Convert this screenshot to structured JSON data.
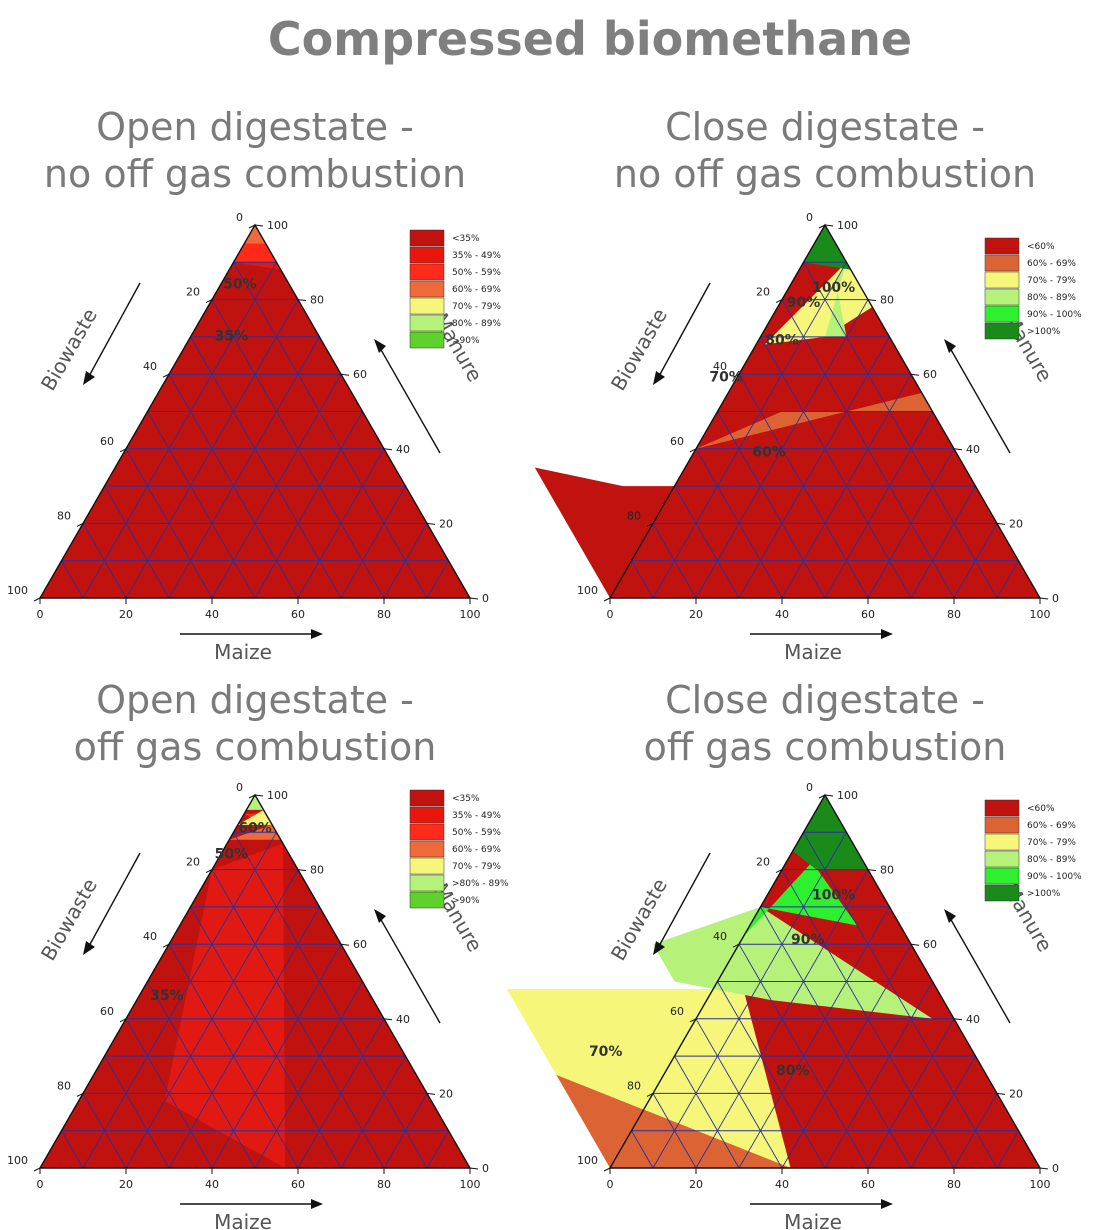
{
  "title": "Compressed biomethane",
  "chart_data": [
    {
      "type": "ternary-contour",
      "title_lines": [
        "Open digestate -",
        "no off gas combustion"
      ],
      "axes": {
        "left": "Biowaste",
        "right": "Manure",
        "bottom": "Maize"
      },
      "ticks": {
        "left": [
          "0",
          "20",
          "40",
          "60",
          "80",
          "100"
        ],
        "right": [
          "100",
          "80",
          "60",
          "40",
          "20",
          "0"
        ],
        "bottom": [
          "0",
          "20",
          "40",
          "60",
          "80",
          "100"
        ]
      },
      "legend": [
        {
          "label": "<35%",
          "color": "#c0130f"
        },
        {
          "label": "35% - 49%",
          "color": "#e8170e"
        },
        {
          "label": "50% - 59%",
          "color": "#ff2a1a"
        },
        {
          "label": "60% - 69%",
          "color": "#ee6a3a"
        },
        {
          "label": "70% - 79%",
          "color": "#f6f77a"
        },
        {
          "label": "80% - 89%",
          "color": "#b6f27a"
        },
        {
          "label": ">90%",
          "color": "#5ed12d"
        }
      ],
      "regions": [
        {
          "color": "#c0130f",
          "points": [
            [
              0,
              100
            ],
            [
              100,
              0
            ],
            [
              0,
              0
            ],
            [
              0,
              88
            ]
          ]
        },
        {
          "color": "#e01a12",
          "points": [
            [
              0,
              90
            ],
            [
              0,
              88
            ],
            [
              10,
              90
            ]
          ]
        },
        {
          "color": "#ff2a1a",
          "points": [
            [
              0,
              95
            ],
            [
              0,
              90
            ],
            [
              10,
              90
            ],
            [
              5,
              95
            ]
          ]
        },
        {
          "color": "#ee6a3a",
          "points": [
            [
              0,
              100
            ],
            [
              0,
              95
            ],
            [
              5,
              95
            ]
          ]
        }
      ],
      "contour_labels": [
        {
          "text": "50%",
          "biowaste": 12,
          "manure": 83
        },
        {
          "text": "35%",
          "biowaste": 21,
          "manure": 69
        }
      ]
    },
    {
      "type": "ternary-contour",
      "title_lines": [
        "Close digestate -",
        "no off gas combustion"
      ],
      "axes": {
        "left": "Biowaste",
        "right": "Manure",
        "bottom": "Maize"
      },
      "ticks": {
        "left": [
          "0",
          "20",
          "40",
          "60",
          "80",
          "100"
        ],
        "right": [
          "100",
          "80",
          "60",
          "40",
          "20",
          "0"
        ],
        "bottom": [
          "0",
          "20",
          "40",
          "60",
          "80",
          "100"
        ]
      },
      "legend": [
        {
          "label": "<60%",
          "color": "#c0130f"
        },
        {
          "label": "60% - 69%",
          "color": "#dc6434"
        },
        {
          "label": "70% - 79%",
          "color": "#f6f77a"
        },
        {
          "label": "80% - 89%",
          "color": "#b6f27a"
        },
        {
          "label": "90% - 100%",
          "color": "#2ef02e"
        },
        {
          "label": ">100%",
          "color": "#1a8a1a"
        }
      ],
      "regions": [
        {
          "color": "#c0130f",
          "points": [
            [
              100,
              0
            ],
            [
              0,
              0
            ],
            [
              10,
              0
            ],
            [
              10,
              30
            ],
            [
              82,
              30
            ],
            [
              100,
              35
            ]
          ]
        },
        {
          "color": "#dc6434",
          "points": [
            [
              0,
              55
            ],
            [
              0,
              50
            ],
            [
              35,
              50
            ],
            [
              60,
              40
            ]
          ]
        },
        {
          "color": "#f6f77a",
          "points": [
            [
              0,
              90
            ],
            [
              0,
              78
            ],
            [
              15,
              70
            ],
            [
              30,
              68
            ]
          ]
        },
        {
          "color": "#b6f27a",
          "points": [
            [
              0,
              90
            ],
            [
              15,
              70
            ],
            [
              10,
              70
            ],
            [
              5,
              85
            ]
          ]
        },
        {
          "color": "#1a8a1a",
          "points": [
            [
              0,
              100
            ],
            [
              0,
              88
            ],
            [
              10,
              90
            ],
            [
              15,
              85
            ]
          ]
        }
      ],
      "contour_labels": [
        {
          "text": "100%",
          "biowaste": 7,
          "manure": 82
        },
        {
          "text": "90%",
          "biowaste": 16,
          "manure": 78
        },
        {
          "text": "80%",
          "biowaste": 26,
          "manure": 68
        },
        {
          "text": "70%",
          "biowaste": 44,
          "manure": 58
        },
        {
          "text": "60%",
          "biowaste": 44,
          "manure": 38
        }
      ]
    },
    {
      "type": "ternary-contour",
      "title_lines": [
        "Open digestate -",
        "off gas combustion"
      ],
      "axes": {
        "left": "Biowaste",
        "right": "Manure",
        "bottom": "Maize"
      },
      "ticks": {
        "left": [
          "0",
          "20",
          "40",
          "60",
          "80",
          "100"
        ],
        "right": [
          "100",
          "80",
          "60",
          "40",
          "20",
          "0"
        ],
        "bottom": [
          "0",
          "20",
          "40",
          "60",
          "80",
          "100"
        ]
      },
      "legend": [
        {
          "label": "<35%",
          "color": "#c0130f"
        },
        {
          "label": "35% - 49%",
          "color": "#e8170e"
        },
        {
          "label": "50% - 59%",
          "color": "#ff2a1a"
        },
        {
          "label": "60% - 69%",
          "color": "#ee6a3a"
        },
        {
          "label": "70% - 79%",
          "color": "#f6f77a"
        },
        {
          "label": ">80% - 89%",
          "color": "#b6f27a"
        },
        {
          "label": ">90%",
          "color": "#5ed12d"
        }
      ],
      "regions": [
        {
          "color": "#c0130f",
          "points": [
            [
              100,
              0
            ],
            [
              0,
              0
            ],
            [
              43,
              0
            ],
            [
              62,
              18
            ]
          ]
        },
        {
          "color": "#e01a12",
          "points": [
            [
              43,
              0
            ],
            [
              62,
              18
            ],
            [
              20,
              80
            ],
            [
              0,
              87
            ]
          ]
        },
        {
          "color": "#ff2a1a",
          "points": [
            [
              0,
              95
            ],
            [
              0,
              89
            ],
            [
              5,
              95
            ]
          ]
        },
        {
          "color": "#ee6a3a",
          "points": [
            [
              0,
              92
            ],
            [
              0,
              88
            ],
            [
              12,
              88
            ]
          ]
        },
        {
          "color": "#f6f77a",
          "points": [
            [
              0,
              96
            ],
            [
              0,
              92
            ],
            [
              8,
              92
            ]
          ]
        },
        {
          "color": "#b6f27a",
          "points": [
            [
              0,
              100
            ],
            [
              0,
              96
            ],
            [
              4,
              96
            ]
          ]
        }
      ],
      "contour_labels": [
        {
          "text": "60%",
          "biowaste": 5,
          "manure": 90
        },
        {
          "text": "50%",
          "biowaste": 14,
          "manure": 83
        },
        {
          "text": "35%",
          "biowaste": 48,
          "manure": 45
        }
      ]
    },
    {
      "type": "ternary-contour",
      "title_lines": [
        "Close digestate -",
        "off gas combustion"
      ],
      "axes": {
        "left": "Biowaste",
        "right": "Manure",
        "bottom": "Maize"
      },
      "ticks": {
        "left": [
          "0",
          "20",
          "40",
          "60",
          "80",
          "100"
        ],
        "right": [
          "100",
          "80",
          "60",
          "40",
          "20",
          "0"
        ],
        "bottom": [
          "0",
          "20",
          "40",
          "60",
          "80",
          "100"
        ]
      },
      "legend": [
        {
          "label": "<60%",
          "color": "#c0130f"
        },
        {
          "label": "60% - 69%",
          "color": "#dc6434"
        },
        {
          "label": "70% - 79%",
          "color": "#f6f77a"
        },
        {
          "label": "80% - 89%",
          "color": "#b6f27a"
        },
        {
          "label": "90% - 100%",
          "color": "#2ef02e"
        },
        {
          "label": ">100%",
          "color": "#1a8a1a"
        }
      ],
      "regions": [
        {
          "color": "#dc6434",
          "points": [
            [
              0,
              0
            ],
            [
              58,
              0
            ],
            [
              100,
              0
            ],
            [
              100,
              0
            ]
          ]
        },
        {
          "color": "#dc6434",
          "points": [
            [
              58,
              0
            ],
            [
              100,
              0
            ],
            [
              100,
              25
            ]
          ]
        },
        {
          "color": "#f6f77a",
          "points": [
            [
              58,
              0
            ],
            [
              100,
              25
            ],
            [
              100,
              48
            ],
            [
              45,
              48
            ]
          ]
        },
        {
          "color": "#b6f27a",
          "points": [
            [
              5,
              40
            ],
            [
              40,
              45
            ],
            [
              60,
              50
            ],
            [
              60,
              60
            ],
            [
              30,
              70
            ]
          ]
        },
        {
          "color": "#2ef02e",
          "points": [
            [
              10,
              65
            ],
            [
              30,
              70
            ],
            [
              38,
              62
            ],
            [
              12,
              82
            ]
          ]
        },
        {
          "color": "#1a8a1a",
          "points": [
            [
              0,
              100
            ],
            [
              0,
              80
            ],
            [
              12,
              80
            ],
            [
              15,
              85
            ]
          ]
        }
      ],
      "contour_labels": [
        {
          "text": "100%",
          "biowaste": 12,
          "manure": 72
        },
        {
          "text": "90%",
          "biowaste": 24,
          "manure": 60
        },
        {
          "text": "80%",
          "biowaste": 45,
          "manure": 25
        },
        {
          "text": "70%",
          "biowaste": 86,
          "manure": 30
        }
      ]
    }
  ]
}
